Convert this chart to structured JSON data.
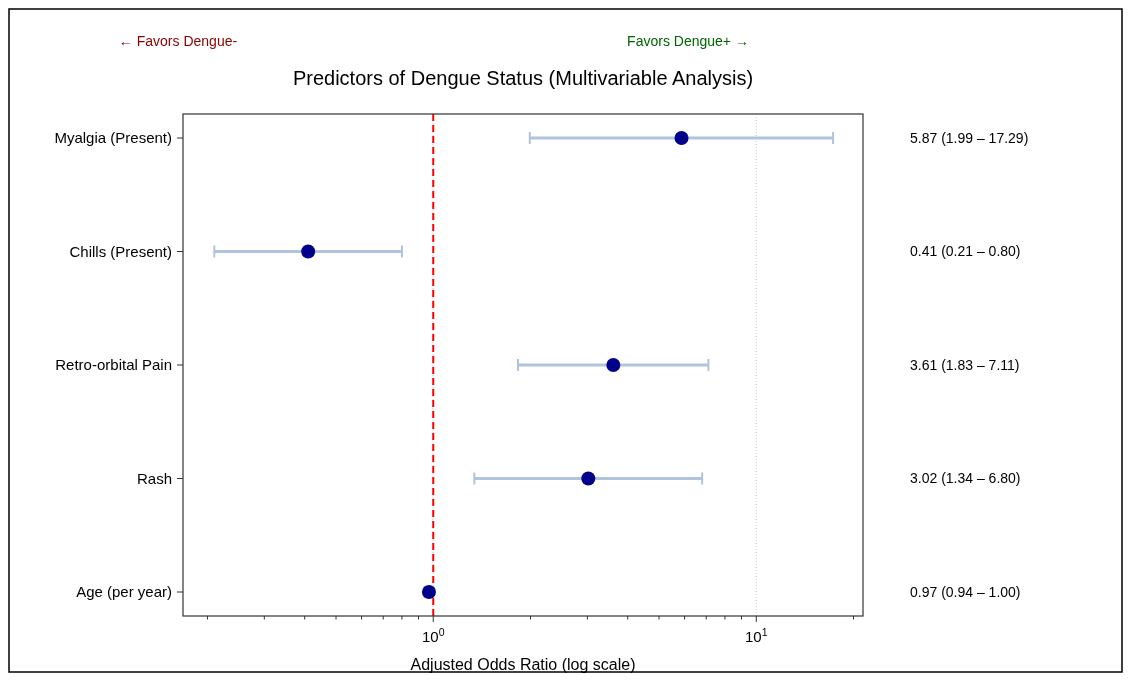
{
  "chart_data": {
    "type": "scatter",
    "orientation": "horizontal",
    "title": "Predictors of Dengue Status (Multivariable Analysis)",
    "xlabel": "Adjusted Odds Ratio (log scale)",
    "annotations": [
      "← Favors Dengue-",
      "Favors Dengue+ →",
      "5.87 (1.99 – 17.29)",
      "0.41 (0.21 – 0.80)",
      "3.61 (1.83 – 7.11)",
      "3.02 (1.34 – 6.80)",
      "0.97 (0.94 – 1.00)"
    ],
    "categories": [
      "Myalgia (Present)",
      "Chills (Present)",
      "Retro-orbital Pain",
      "Rash",
      "Age (per year)"
    ],
    "series": [
      {
        "color": "#00008b",
        "values": [
          5.87,
          0.41,
          3.61,
          3.02,
          0.97
        ],
        "errors": [
          [
            1.99,
            17.29
          ],
          [
            0.21,
            0.8
          ],
          [
            1.83,
            7.11
          ],
          [
            1.34,
            6.8
          ],
          [
            0.94,
            1.0
          ]
        ]
      }
    ],
    "log": "x",
    "xlim": [
      0.168,
      21.4
    ],
    "xticks": [
      {
        "value": 0.2,
        "label": null
      },
      {
        "value": 0.3,
        "label": null
      },
      {
        "value": 0.4,
        "label": null
      },
      {
        "value": 0.5,
        "label": null
      },
      {
        "value": 0.6,
        "label": null
      },
      {
        "value": 0.7,
        "label": null
      },
      {
        "value": 0.8,
        "label": null
      },
      {
        "value": 0.9,
        "label": null
      },
      {
        "value": 1,
        "label": "10$^{0}$"
      },
      {
        "value": 2,
        "label": null
      },
      {
        "value": 3,
        "label": null
      },
      {
        "value": 4,
        "label": null
      },
      {
        "value": 5,
        "label": null
      },
      {
        "value": 6,
        "label": null
      },
      {
        "value": 7,
        "label": null
      },
      {
        "value": 8,
        "label": null
      },
      {
        "value": 9,
        "label": null
      },
      {
        "value": 10,
        "label": "10$^{1}$"
      },
      {
        "value": 20,
        "label": null
      }
    ],
    "grid": "x",
    "marker": "circle",
    "ref_lines": [
      {
        "axis": "x",
        "value": 1,
        "color": "#ff0000",
        "line_style": "dashed"
      }
    ]
  }
}
